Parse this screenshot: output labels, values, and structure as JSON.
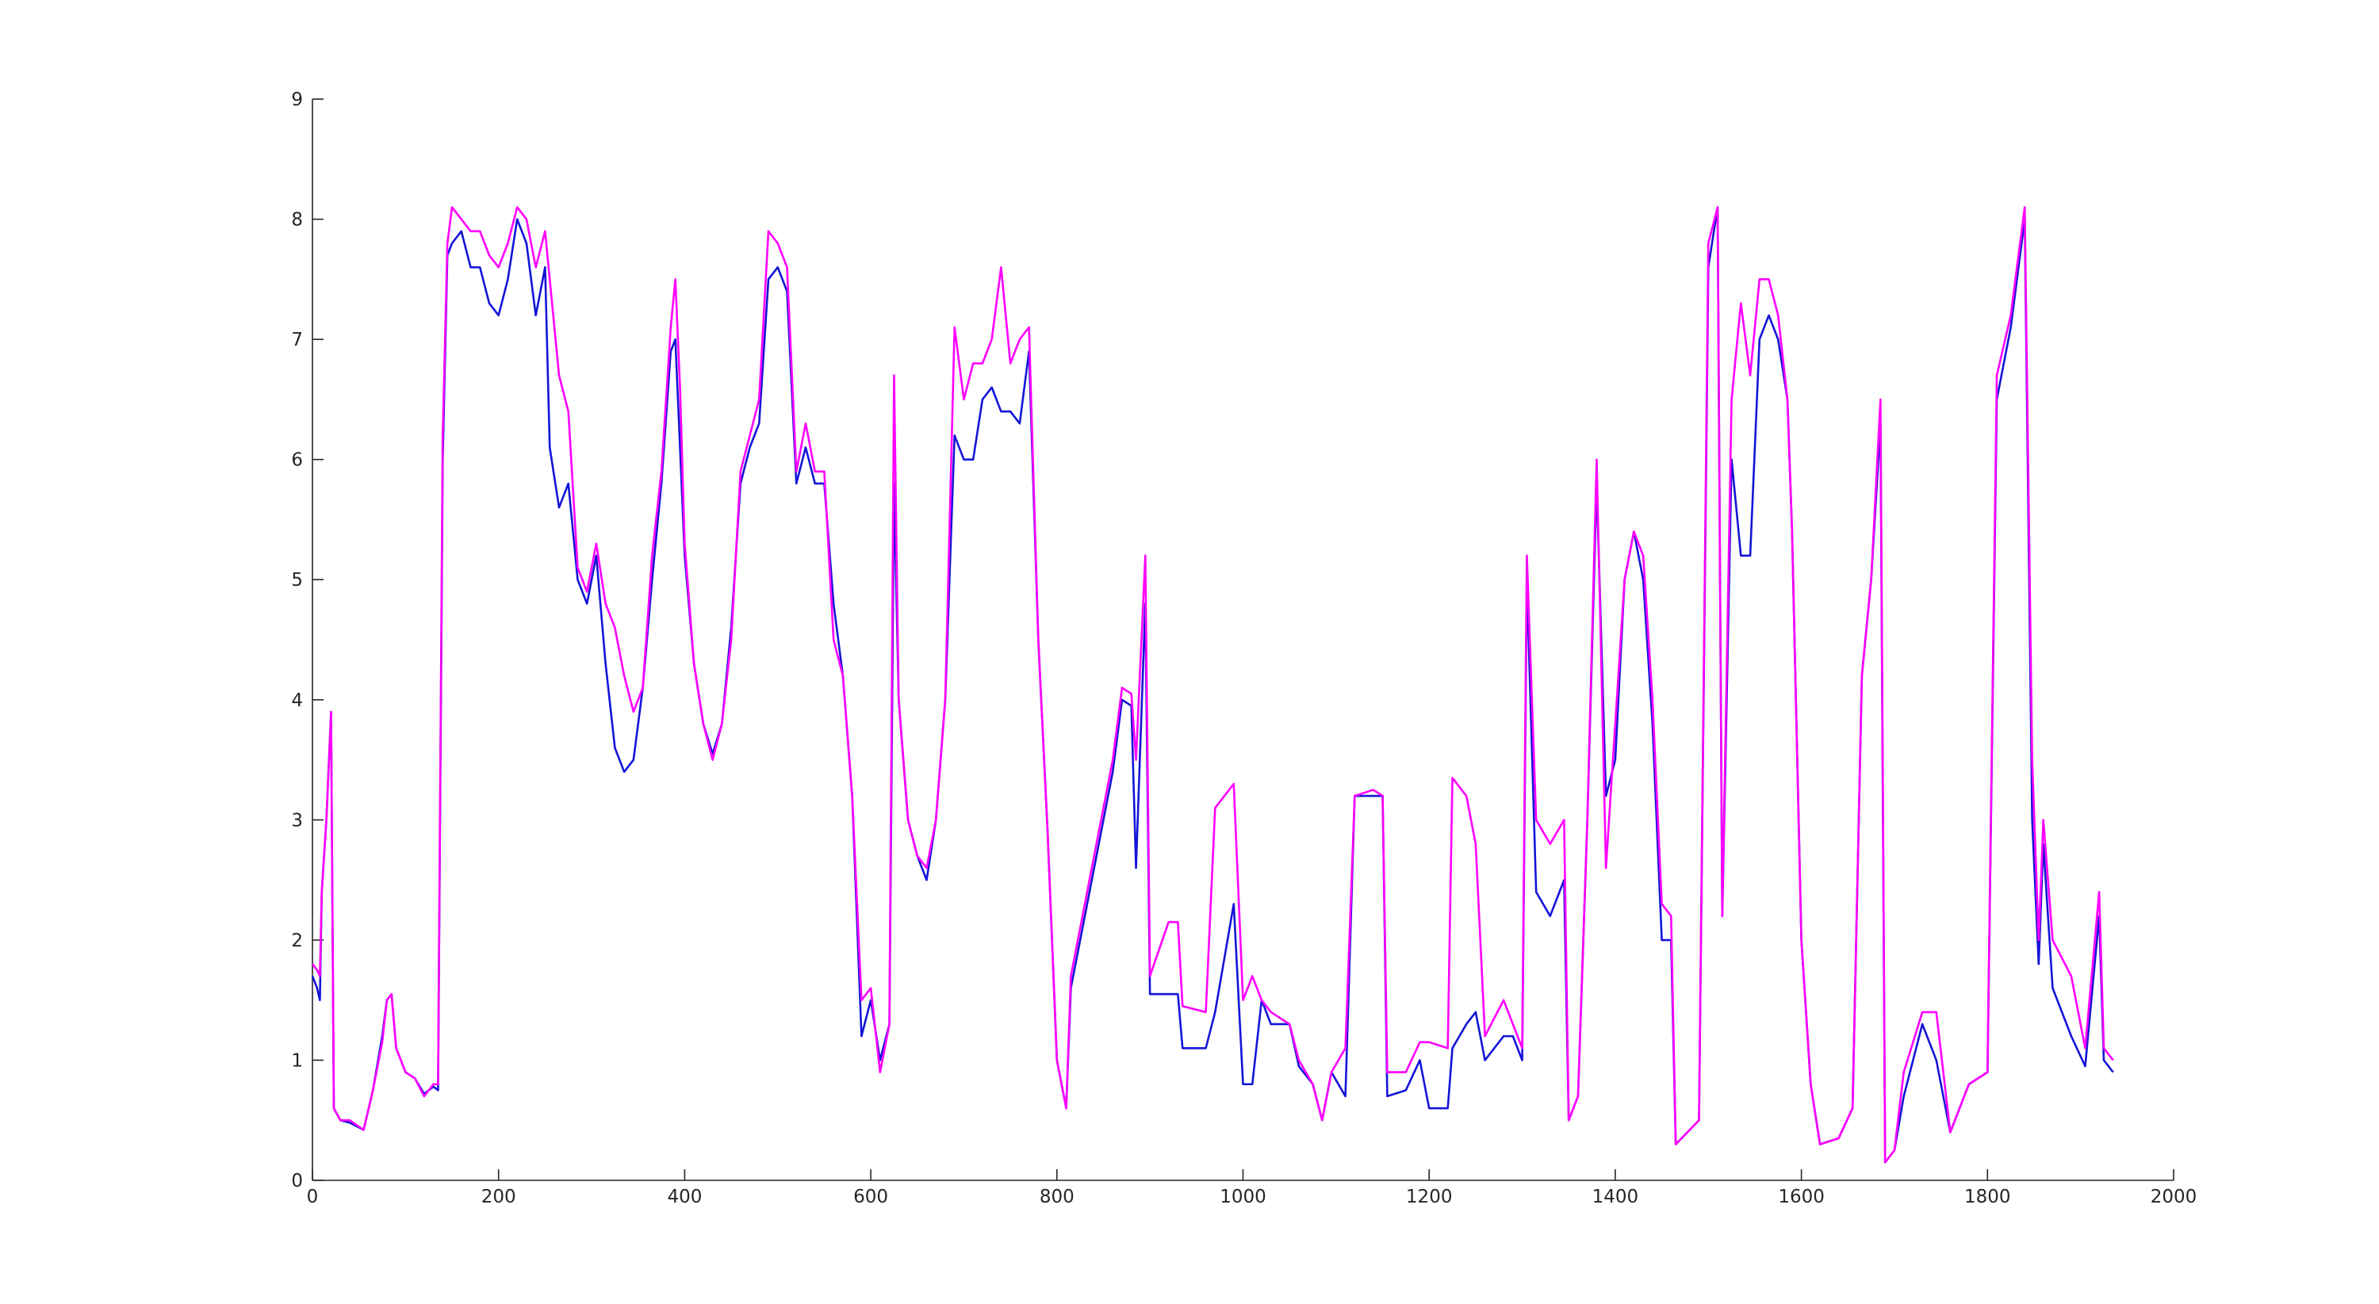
{
  "chart_data": {
    "type": "line",
    "x": [
      0,
      5,
      8,
      10,
      15,
      20,
      23,
      30,
      40,
      55,
      65,
      75,
      80,
      85,
      90,
      100,
      110,
      120,
      130,
      135,
      140,
      145,
      150,
      160,
      170,
      180,
      190,
      200,
      210,
      220,
      230,
      240,
      250,
      255,
      265,
      275,
      285,
      295,
      305,
      315,
      325,
      335,
      345,
      355,
      365,
      375,
      385,
      390,
      395,
      400,
      410,
      420,
      430,
      440,
      450,
      460,
      470,
      480,
      490,
      500,
      510,
      520,
      530,
      540,
      550,
      560,
      570,
      580,
      590,
      600,
      610,
      620,
      625,
      630,
      640,
      650,
      660,
      670,
      680,
      690,
      700,
      710,
      720,
      730,
      740,
      750,
      760,
      770,
      780,
      790,
      800,
      810,
      815,
      825,
      840,
      860,
      870,
      880,
      885,
      895,
      900,
      920,
      930,
      935,
      960,
      970,
      990,
      1000,
      1010,
      1020,
      1030,
      1050,
      1060,
      1075,
      1085,
      1095,
      1110,
      1120,
      1140,
      1150,
      1155,
      1175,
      1190,
      1200,
      1220,
      1225,
      1240,
      1250,
      1260,
      1280,
      1290,
      1300,
      1305,
      1315,
      1330,
      1345,
      1350,
      1360,
      1370,
      1380,
      1390,
      1400,
      1410,
      1420,
      1430,
      1440,
      1450,
      1460,
      1465,
      1490,
      1500,
      1510,
      1515,
      1525,
      1535,
      1545,
      1555,
      1565,
      1575,
      1585,
      1590,
      1600,
      1610,
      1620,
      1640,
      1655,
      1665,
      1675,
      1685,
      1690,
      1700,
      1710,
      1730,
      1745,
      1760,
      1780,
      1800,
      1810,
      1825,
      1840,
      1848,
      1855,
      1860,
      1870,
      1890,
      1905,
      1920,
      1925,
      1935
    ],
    "series": [
      {
        "color": "#1414d8",
        "values": [
          1.7,
          1.6,
          1.5,
          2.4,
          3.0,
          3.9,
          0.6,
          0.5,
          0.48,
          0.42,
          0.75,
          1.2,
          1.5,
          1.55,
          1.1,
          0.9,
          0.85,
          0.72,
          0.78,
          0.75,
          6.0,
          7.7,
          7.8,
          7.9,
          7.6,
          7.6,
          7.3,
          7.2,
          7.5,
          8.0,
          7.8,
          7.2,
          7.6,
          6.1,
          5.6,
          5.8,
          5.0,
          4.8,
          5.2,
          4.3,
          3.6,
          3.4,
          3.5,
          4.1,
          5.0,
          5.8,
          6.9,
          7.0,
          6.1,
          5.2,
          4.3,
          3.8,
          3.55,
          3.8,
          4.6,
          5.8,
          6.1,
          6.3,
          7.5,
          7.6,
          7.4,
          5.8,
          6.1,
          5.8,
          5.8,
          4.8,
          4.2,
          3.2,
          1.2,
          1.5,
          1.0,
          1.3,
          5.8,
          4.0,
          3.0,
          2.7,
          2.5,
          3.0,
          4.0,
          6.2,
          6.0,
          6.0,
          6.5,
          6.6,
          6.4,
          6.4,
          6.3,
          6.9,
          4.5,
          2.9,
          1.0,
          0.6,
          1.6,
          2.0,
          2.6,
          3.4,
          4.0,
          3.95,
          2.6,
          4.8,
          1.55,
          1.55,
          1.55,
          1.1,
          1.1,
          1.4,
          2.3,
          0.8,
          0.8,
          1.5,
          1.3,
          1.3,
          0.95,
          0.8,
          0.5,
          0.9,
          0.7,
          3.2,
          3.2,
          3.2,
          0.7,
          0.75,
          1.0,
          0.6,
          0.6,
          1.1,
          1.3,
          1.4,
          1.0,
          1.2,
          1.2,
          1.0,
          5.0,
          2.4,
          2.2,
          2.5,
          0.5,
          0.7,
          3.0,
          5.8,
          3.2,
          3.5,
          5.0,
          5.4,
          5.0,
          3.8,
          2.0,
          2.0,
          0.3,
          0.5,
          7.6,
          8.1,
          2.2,
          6.0,
          5.2,
          5.2,
          7.0,
          7.2,
          7.0,
          6.5,
          5.4,
          2.0,
          0.8,
          0.3,
          0.35,
          0.6,
          4.2,
          5.0,
          6.3,
          0.15,
          0.25,
          0.7,
          1.3,
          1.0,
          0.4,
          0.8,
          0.9,
          6.5,
          7.1,
          8.0,
          3.0,
          1.8,
          2.8,
          1.6,
          1.2,
          0.95,
          2.2,
          1.0,
          0.9
        ]
      },
      {
        "color": "#ff00ff",
        "values": [
          1.8,
          1.75,
          1.7,
          2.4,
          3.0,
          3.9,
          0.6,
          0.5,
          0.5,
          0.42,
          0.75,
          1.15,
          1.5,
          1.55,
          1.1,
          0.9,
          0.85,
          0.7,
          0.8,
          0.8,
          6.2,
          7.8,
          8.1,
          8.0,
          7.9,
          7.9,
          7.7,
          7.6,
          7.8,
          8.1,
          8.0,
          7.6,
          7.9,
          7.5,
          6.7,
          6.4,
          5.1,
          4.9,
          5.3,
          4.8,
          4.6,
          4.2,
          3.9,
          4.1,
          5.2,
          5.9,
          7.1,
          7.5,
          6.6,
          5.3,
          4.3,
          3.8,
          3.5,
          3.8,
          4.5,
          5.9,
          6.2,
          6.5,
          7.9,
          7.8,
          7.6,
          5.9,
          6.3,
          5.9,
          5.9,
          4.5,
          4.2,
          3.2,
          1.5,
          1.6,
          0.9,
          1.3,
          6.7,
          4.0,
          3.0,
          2.7,
          2.6,
          3.0,
          4.0,
          7.1,
          6.5,
          6.8,
          6.8,
          7.0,
          7.6,
          6.8,
          7.0,
          7.1,
          4.5,
          2.9,
          1.0,
          0.6,
          1.7,
          2.1,
          2.7,
          3.5,
          4.1,
          4.05,
          3.5,
          5.2,
          1.7,
          2.15,
          2.15,
          1.45,
          1.4,
          3.1,
          3.3,
          1.5,
          1.7,
          1.5,
          1.4,
          1.3,
          1.0,
          0.8,
          0.5,
          0.9,
          1.1,
          3.2,
          3.25,
          3.2,
          0.9,
          0.9,
          1.15,
          1.15,
          1.1,
          3.35,
          3.2,
          2.8,
          1.2,
          1.5,
          1.3,
          1.1,
          5.2,
          3.0,
          2.8,
          3.0,
          0.5,
          0.7,
          3.0,
          6.0,
          2.6,
          3.8,
          5.0,
          5.4,
          5.2,
          4.0,
          2.3,
          2.2,
          0.3,
          0.5,
          7.8,
          8.1,
          2.2,
          6.5,
          7.3,
          6.7,
          7.5,
          7.5,
          7.2,
          6.5,
          5.4,
          2.0,
          0.8,
          0.3,
          0.35,
          0.6,
          4.2,
          5.0,
          6.5,
          0.15,
          0.25,
          0.9,
          1.4,
          1.4,
          0.4,
          0.8,
          0.9,
          6.7,
          7.2,
          8.1,
          3.5,
          2.0,
          3.0,
          2.0,
          1.7,
          1.1,
          2.4,
          1.1,
          1.0
        ]
      }
    ],
    "xlim": [
      0,
      2000
    ],
    "xticks": [
      0,
      200,
      400,
      600,
      800,
      1000,
      1200,
      1400,
      1600,
      1800,
      2000
    ],
    "ylim": [
      0,
      9
    ],
    "yticks": [
      0,
      1,
      2,
      3,
      4,
      5,
      6,
      7,
      8,
      9
    ]
  }
}
